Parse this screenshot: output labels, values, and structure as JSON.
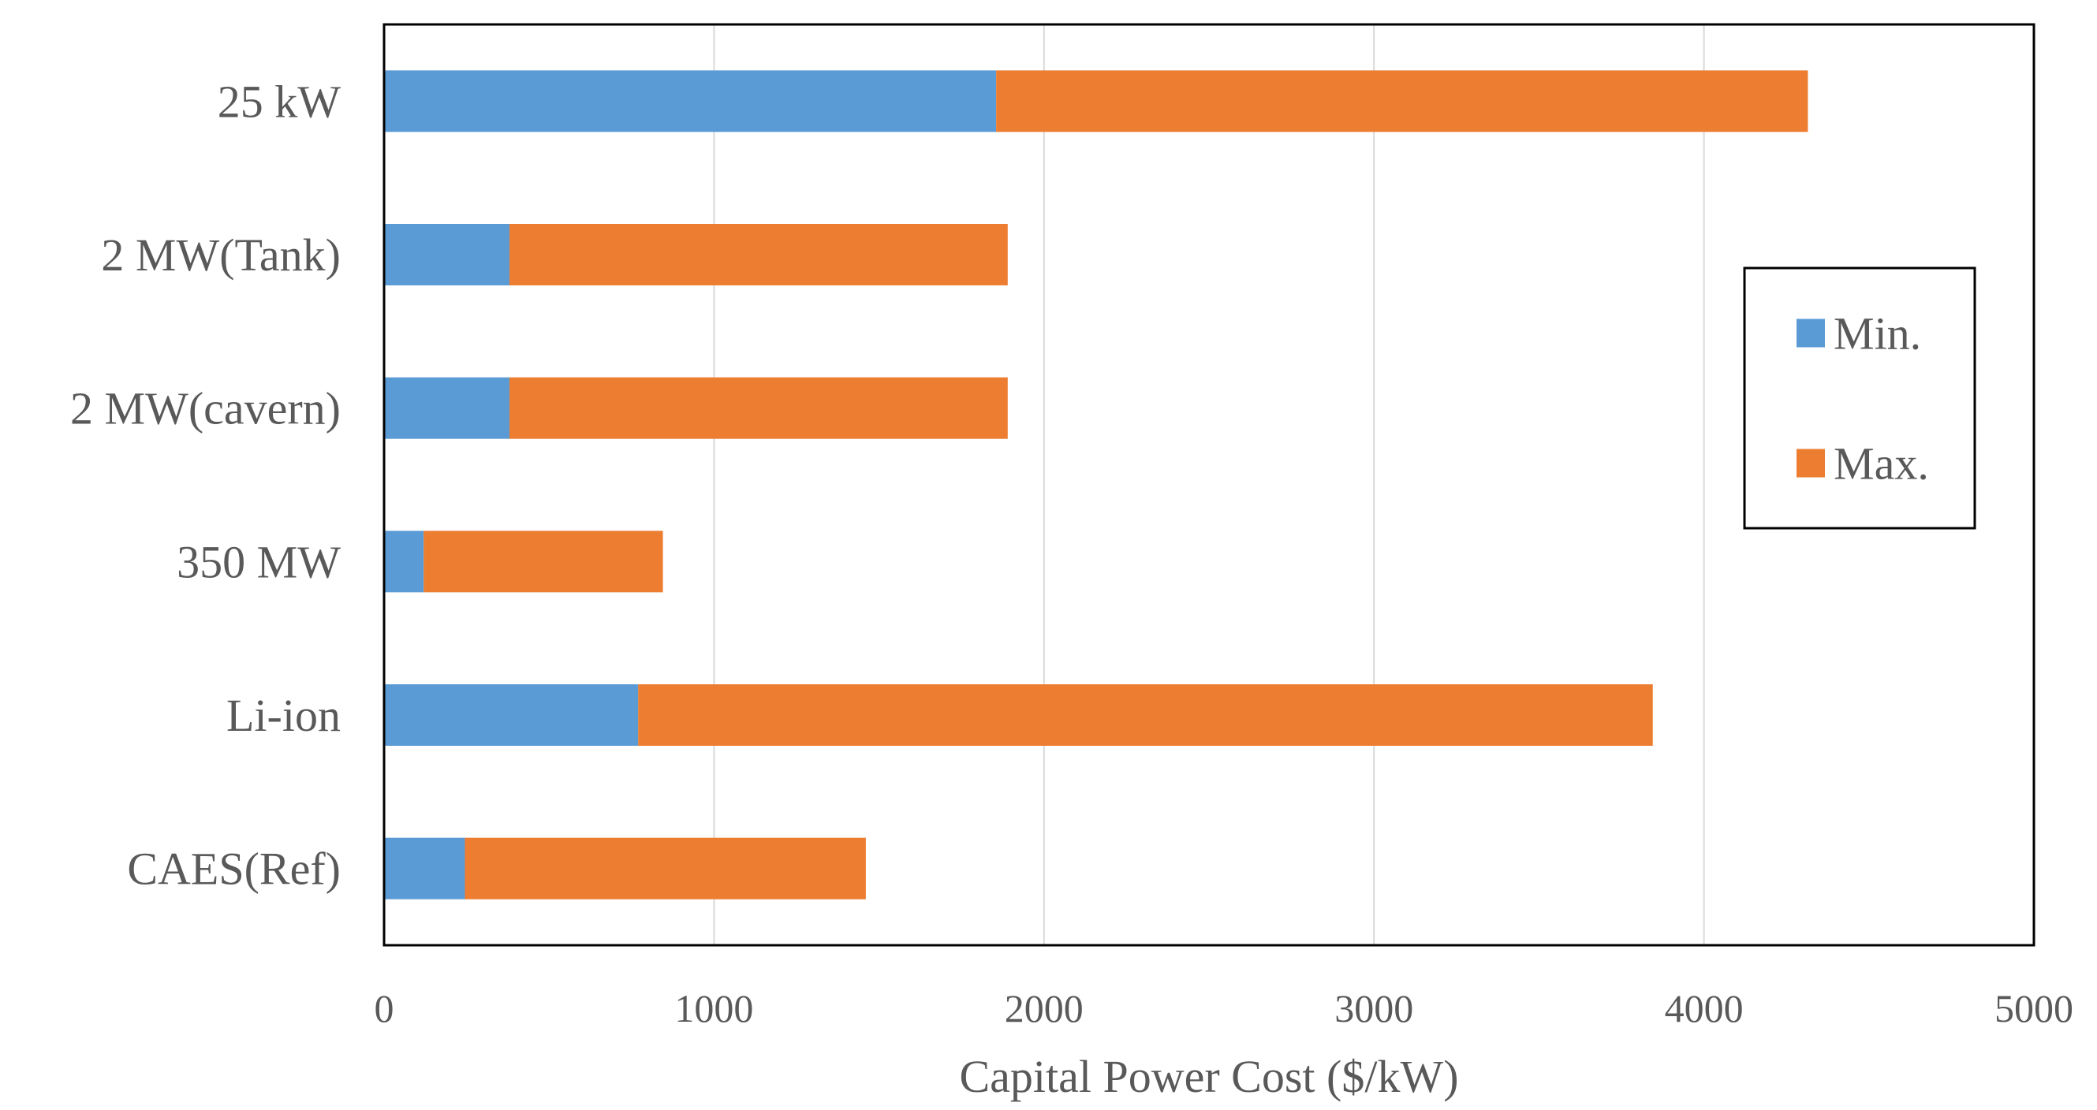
{
  "chart_data": {
    "type": "bar",
    "orientation": "horizontal",
    "stacked": true,
    "title": "",
    "xlabel": "Capital Power Cost ($/kW)",
    "ylabel": "",
    "xlim": [
      0,
      5000
    ],
    "xticks": [
      0,
      1000,
      2000,
      3000,
      4000,
      5000
    ],
    "grid": "vertical",
    "legend_position": "right",
    "categories": [
      "25 kW",
      "2 MW(Tank)",
      "2 MW(cavern)",
      "350 MW",
      "Li-ion",
      "CAES(Ref)"
    ],
    "series": [
      {
        "name": "Min.",
        "color": "#5B9BD5",
        "values": [
          1855,
          380,
          380,
          120,
          770,
          245
        ]
      },
      {
        "name": "Max.",
        "color": "#ED7D31",
        "values": [
          2460,
          1510,
          1510,
          725,
          3075,
          1215
        ]
      }
    ]
  }
}
